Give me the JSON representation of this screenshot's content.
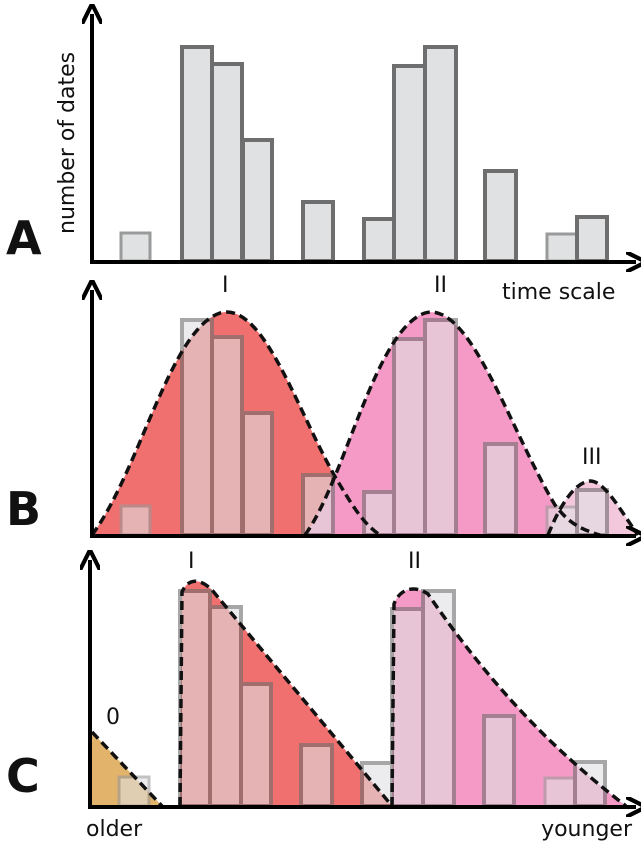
{
  "panels": {
    "A": {
      "letter": "A",
      "ylabel": "number of dates",
      "xlabel": "time scale"
    },
    "B": {
      "letter": "B",
      "peak_labels": [
        "I",
        "II",
        "III"
      ]
    },
    "C": {
      "letter": "C",
      "peak_labels": [
        "0",
        "I",
        "II"
      ],
      "left_label": "older",
      "right_label": "younger"
    }
  },
  "colors": {
    "bar_fill": "#e0e1e3",
    "bar_stroke": "#6e6e6e",
    "group_I": "#f07070",
    "group_II": "#f59ac7",
    "group_III": "#f3c8dd",
    "group_0": "#e2b36a"
  }
}
